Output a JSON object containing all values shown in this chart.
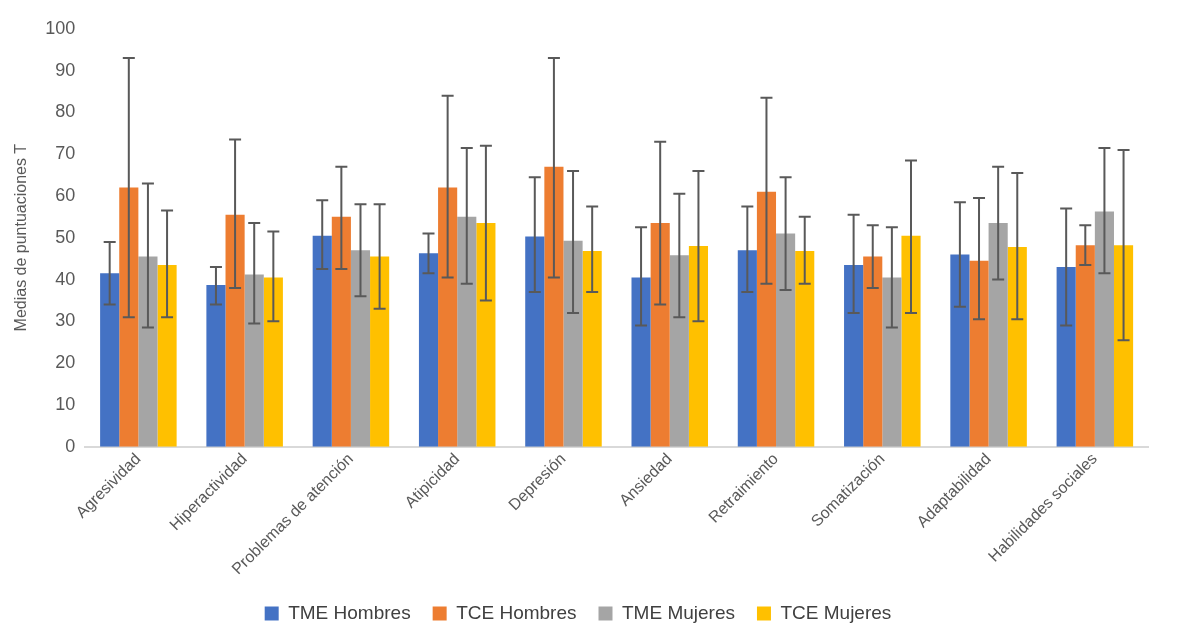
{
  "chart_data": {
    "type": "bar",
    "ylabel": "Medias de puntuaciones T",
    "categories": [
      "Agresividad",
      "Hiperactividad",
      "Problemas de atención",
      "Atipicidad",
      "Depresión",
      "Ansiedad",
      "Retraimiento",
      "Somatización",
      "Adaptabilidad",
      "Habilidades sociales"
    ],
    "series": [
      {
        "name": "TME Hombres",
        "color": "#4472c4",
        "values": [
          41.5,
          38.7,
          50.5,
          46.3,
          50.3,
          40.5,
          47,
          43.5,
          46,
          43
        ],
        "errors": [
          [
            34,
            49
          ],
          [
            34,
            43
          ],
          [
            42.5,
            59
          ],
          [
            41.5,
            51
          ],
          [
            37,
            64.5
          ],
          [
            29,
            52.5
          ],
          [
            37,
            57.5
          ],
          [
            32,
            55.5
          ],
          [
            33.5,
            58.5
          ],
          [
            29,
            57
          ]
        ]
      },
      {
        "name": "TCE Hombres",
        "color": "#ed7d31",
        "values": [
          62,
          55.5,
          55,
          62,
          67,
          53.5,
          61,
          45.5,
          44.5,
          48.2
        ],
        "errors": [
          [
            31,
            93
          ],
          [
            38,
            73.5
          ],
          [
            42.5,
            67
          ],
          [
            40.5,
            84
          ],
          [
            40.5,
            93
          ],
          [
            34,
            73
          ],
          [
            39,
            83.5
          ],
          [
            38,
            53
          ],
          [
            30.5,
            59.5
          ],
          [
            43.5,
            53
          ]
        ]
      },
      {
        "name": "TME Mujeres",
        "color": "#a5a5a5",
        "values": [
          45.5,
          41.2,
          47,
          55,
          49.3,
          45.8,
          51,
          40.5,
          53.5,
          56.3
        ],
        "errors": [
          [
            28.5,
            63
          ],
          [
            29.5,
            53.5
          ],
          [
            36,
            58
          ],
          [
            39,
            71.5
          ],
          [
            32,
            66
          ],
          [
            31,
            60.5
          ],
          [
            37.5,
            64.5
          ],
          [
            28.5,
            52.5
          ],
          [
            40,
            67
          ],
          [
            41.5,
            71.5
          ]
        ]
      },
      {
        "name": "TCE Mujeres",
        "color": "#ffc000",
        "values": [
          43.5,
          40.5,
          45.5,
          53.5,
          46.8,
          48,
          46.8,
          50.5,
          47.8,
          48.2
        ],
        "errors": [
          [
            31,
            56.5
          ],
          [
            30,
            51.5
          ],
          [
            33,
            58
          ],
          [
            35,
            72
          ],
          [
            37,
            57.5
          ],
          [
            30,
            66
          ],
          [
            39,
            55
          ],
          [
            32,
            68.5
          ],
          [
            30.5,
            65.5
          ],
          [
            25.5,
            71
          ]
        ]
      }
    ],
    "ylim": [
      0,
      100
    ],
    "yticks": [
      0,
      10,
      20,
      30,
      40,
      50,
      60,
      70,
      80,
      90,
      100
    ],
    "grid": false,
    "legend": "bottom"
  }
}
